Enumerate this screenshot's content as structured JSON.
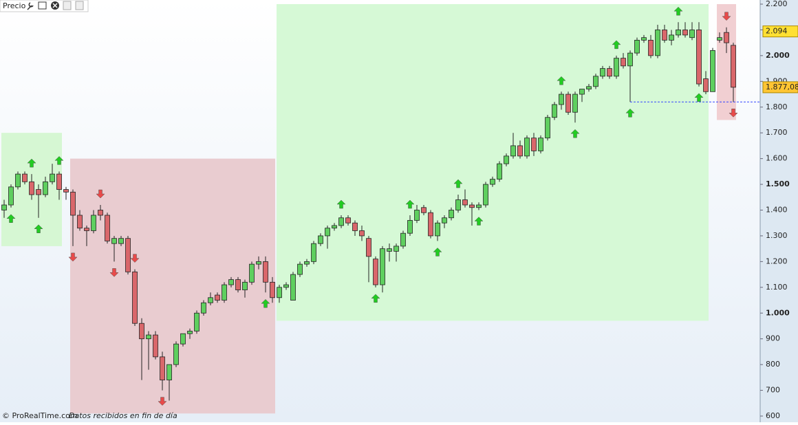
{
  "header": {
    "title": "Precio"
  },
  "footer": {
    "copyright": "© ProRealTime.com",
    "note": "Datos recibidos en fin de día"
  },
  "chart_data": {
    "type": "candlestick",
    "up_color": "#5fcf5f",
    "down_color": "#d9676b",
    "open": [
      1400,
      1420,
      1490,
      1540,
      1510,
      1480,
      1460,
      1510,
      1540,
      1480,
      1470,
      1380,
      1330,
      1320,
      1400,
      1380,
      1270,
      1270,
      1290,
      1160,
      960,
      900,
      915,
      830,
      740,
      800,
      880,
      920,
      930,
      1000,
      1040,
      1070,
      1050,
      1110,
      1130,
      1090,
      1120,
      1190,
      1200,
      1120,
      1060,
      1100,
      1050,
      1150,
      1190,
      1200,
      1270,
      1300,
      1330,
      1340,
      1370,
      1350,
      1320,
      1290,
      1210,
      1110,
      1240,
      1240,
      1260,
      1310,
      1360,
      1410,
      1390,
      1300,
      1350,
      1370,
      1400,
      1440,
      1420,
      1410,
      1420,
      1500,
      1520,
      1580,
      1610,
      1650,
      1610,
      1680,
      1630,
      1680,
      1760,
      1810,
      1850,
      1780,
      1850,
      1870,
      1880,
      1920,
      1950,
      1920,
      1990,
      1960,
      2010,
      2060,
      2060,
      2000,
      2100,
      2060,
      2080,
      2100,
      2070,
      2100,
      1910,
      1860,
      2060,
      2090,
      2040
    ],
    "high": [
      1440,
      1500,
      1550,
      1550,
      1540,
      1500,
      1530,
      1580,
      1550,
      1490,
      1480,
      1400,
      1340,
      1400,
      1420,
      1390,
      1300,
      1300,
      1300,
      1170,
      980,
      930,
      930,
      850,
      800,
      890,
      920,
      940,
      1010,
      1050,
      1080,
      1080,
      1120,
      1140,
      1140,
      1130,
      1200,
      1220,
      1220,
      1140,
      1110,
      1120,
      1160,
      1200,
      1210,
      1280,
      1310,
      1340,
      1350,
      1380,
      1380,
      1360,
      1340,
      1300,
      1220,
      1260,
      1270,
      1270,
      1320,
      1380,
      1420,
      1420,
      1400,
      1360,
      1380,
      1410,
      1460,
      1480,
      1430,
      1430,
      1510,
      1530,
      1590,
      1620,
      1700,
      1670,
      1690,
      1700,
      1690,
      1770,
      1820,
      1860,
      1860,
      1860,
      1870,
      1890,
      1930,
      1960,
      1960,
      2000,
      2010,
      2020,
      2070,
      2080,
      2080,
      2120,
      2120,
      2100,
      2130,
      2130,
      2130,
      2130,
      1940,
      2030,
      2090,
      2110,
      2050
    ],
    "low": [
      1370,
      1410,
      1480,
      1500,
      1440,
      1370,
      1450,
      1500,
      1440,
      1440,
      1260,
      1320,
      1260,
      1310,
      1360,
      1270,
      1200,
      1260,
      1150,
      950,
      740,
      780,
      820,
      700,
      660,
      790,
      870,
      900,
      920,
      990,
      1030,
      1040,
      1040,
      1100,
      1080,
      1060,
      1110,
      1170,
      1080,
      1040,
      1040,
      1090,
      1050,
      1140,
      1180,
      1190,
      1260,
      1250,
      1320,
      1330,
      1340,
      1300,
      1280,
      1120,
      1100,
      1080,
      1200,
      1200,
      1250,
      1300,
      1350,
      1380,
      1290,
      1280,
      1330,
      1360,
      1390,
      1410,
      1340,
      1400,
      1410,
      1490,
      1510,
      1570,
      1600,
      1600,
      1600,
      1610,
      1620,
      1670,
      1750,
      1790,
      1770,
      1740,
      1820,
      1860,
      1870,
      1910,
      1910,
      1910,
      1950,
      1820,
      2000,
      2050,
      1990,
      1990,
      2050,
      2040,
      2070,
      2070,
      2060,
      1880,
      1850,
      1860,
      2050,
      2010,
      1820
    ],
    "close": [
      1420,
      1490,
      1540,
      1510,
      1460,
      1460,
      1510,
      1540,
      1480,
      1470,
      1380,
      1330,
      1320,
      1380,
      1380,
      1280,
      1290,
      1290,
      1160,
      960,
      900,
      915,
      830,
      740,
      800,
      880,
      920,
      930,
      1000,
      1040,
      1060,
      1050,
      1110,
      1130,
      1090,
      1120,
      1190,
      1200,
      1120,
      1060,
      1100,
      1110,
      1150,
      1190,
      1200,
      1270,
      1300,
      1330,
      1340,
      1370,
      1350,
      1320,
      1300,
      1220,
      1110,
      1250,
      1250,
      1260,
      1310,
      1360,
      1400,
      1390,
      1300,
      1350,
      1370,
      1400,
      1440,
      1420,
      1410,
      1420,
      1500,
      1520,
      1580,
      1610,
      1650,
      1610,
      1680,
      1630,
      1680,
      1760,
      1810,
      1850,
      1780,
      1850,
      1870,
      1880,
      1920,
      1950,
      1920,
      1990,
      1960,
      2010,
      2060,
      2070,
      2000,
      2100,
      2060,
      2080,
      2100,
      2080,
      2100,
      1890,
      1860,
      2020,
      2070,
      2050,
      1877.08
    ],
    "ylim": [
      600,
      2200
    ],
    "yticks": [
      {
        "value": 600,
        "label": "600"
      },
      700,
      800,
      900,
      {
        "value": 1000,
        "label": "1.000"
      },
      {
        "value": 1100,
        "label": "1.100"
      },
      {
        "value": 1200,
        "label": "1.200"
      },
      {
        "value": 1300,
        "label": "1.300"
      },
      {
        "value": 1400,
        "label": "1.400"
      },
      {
        "value": 1500,
        "label": "1.500"
      },
      {
        "value": 1600,
        "label": "1.600"
      },
      {
        "value": 1700,
        "label": "1.700"
      },
      {
        "value": 1800,
        "label": "1.800"
      },
      {
        "value": 1900,
        "label": "1.900"
      },
      {
        "value": 2000,
        "label": "2.000"
      },
      {
        "value": 2100,
        "label": "2.100"
      },
      {
        "value": 2200,
        "label": "2.200"
      }
    ],
    "zones": [
      {
        "from": 0,
        "to": 8,
        "low": 1260,
        "high": 1700,
        "color": "#d6f7d3"
      },
      {
        "from": 10,
        "to": 39,
        "low": 610,
        "high": 1600,
        "color": "#e9ccd0"
      },
      {
        "from": 40,
        "to": 102,
        "low": 970,
        "high": 2200,
        "color": "#d6f9d6"
      },
      {
        "from": 104,
        "to": 106,
        "low": 1750,
        "high": 2200,
        "color": "#f1cfd2"
      }
    ],
    "signals": [
      {
        "bar": 1,
        "dir": "up",
        "pos": "below"
      },
      {
        "bar": 4,
        "dir": "up",
        "pos": "above"
      },
      {
        "bar": 5,
        "dir": "up",
        "pos": "below"
      },
      {
        "bar": 8,
        "dir": "up",
        "pos": "above"
      },
      {
        "bar": 10,
        "dir": "down",
        "pos": "below"
      },
      {
        "bar": 14,
        "dir": "down",
        "pos": "above"
      },
      {
        "bar": 16,
        "dir": "down",
        "pos": "below"
      },
      {
        "bar": 19,
        "dir": "down",
        "pos": "above"
      },
      {
        "bar": 23,
        "dir": "down",
        "pos": "below"
      },
      {
        "bar": 38,
        "dir": "up",
        "pos": "below"
      },
      {
        "bar": 49,
        "dir": "up",
        "pos": "above"
      },
      {
        "bar": 54,
        "dir": "up",
        "pos": "below"
      },
      {
        "bar": 59,
        "dir": "up",
        "pos": "above"
      },
      {
        "bar": 63,
        "dir": "up",
        "pos": "below"
      },
      {
        "bar": 66,
        "dir": "up",
        "pos": "above"
      },
      {
        "bar": 69,
        "dir": "up",
        "pos": "below"
      },
      {
        "bar": 81,
        "dir": "up",
        "pos": "above"
      },
      {
        "bar": 83,
        "dir": "up",
        "pos": "below"
      },
      {
        "bar": 89,
        "dir": "up",
        "pos": "above"
      },
      {
        "bar": 91,
        "dir": "up",
        "pos": "below"
      },
      {
        "bar": 98,
        "dir": "up",
        "pos": "above"
      },
      {
        "bar": 101,
        "dir": "up",
        "pos": "below"
      },
      {
        "bar": 105,
        "dir": "down",
        "pos": "above"
      },
      {
        "bar": 106,
        "dir": "down",
        "pos": "below"
      }
    ],
    "hline": {
      "value": 1820,
      "from": 91,
      "color": "#3344ff"
    },
    "price_labels": [
      {
        "value": 2094,
        "label": "2.094",
        "color": "#ffe033"
      },
      {
        "value": 1877.08,
        "label": "1.877,08",
        "color": "#ffc533"
      }
    ]
  }
}
